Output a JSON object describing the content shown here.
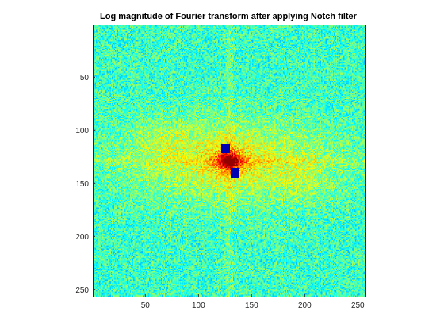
{
  "chart_data": {
    "type": "heatmap",
    "title": "Log magnitude of Fourier transform after applying Notch filter",
    "xlabel": "",
    "ylabel": "",
    "xlim": [
      0.5,
      256.5
    ],
    "ylim": [
      0.5,
      256.5
    ],
    "y_reversed": true,
    "grid": false,
    "colormap": "jet",
    "image_size": [
      256,
      256
    ],
    "x_ticks": [
      50,
      100,
      150,
      200,
      250
    ],
    "y_ticks": [
      50,
      100,
      150,
      200,
      250
    ],
    "x_tick_labels": [
      "50",
      "100",
      "150",
      "200",
      "250"
    ],
    "y_tick_labels": [
      "50",
      "100",
      "150",
      "200",
      "250"
    ],
    "peak_center": [
      129,
      129
    ],
    "notches": [
      {
        "x_range": [
          122,
          129
        ],
        "y_range": [
          113,
          121
        ],
        "value": "minimum"
      },
      {
        "x_range": [
          131,
          138
        ],
        "y_range": [
          136,
          144
        ],
        "value": "minimum"
      }
    ],
    "colors": {
      "notch": "#00008f",
      "peak": "#cc1100",
      "background": "#7fff7f"
    }
  }
}
